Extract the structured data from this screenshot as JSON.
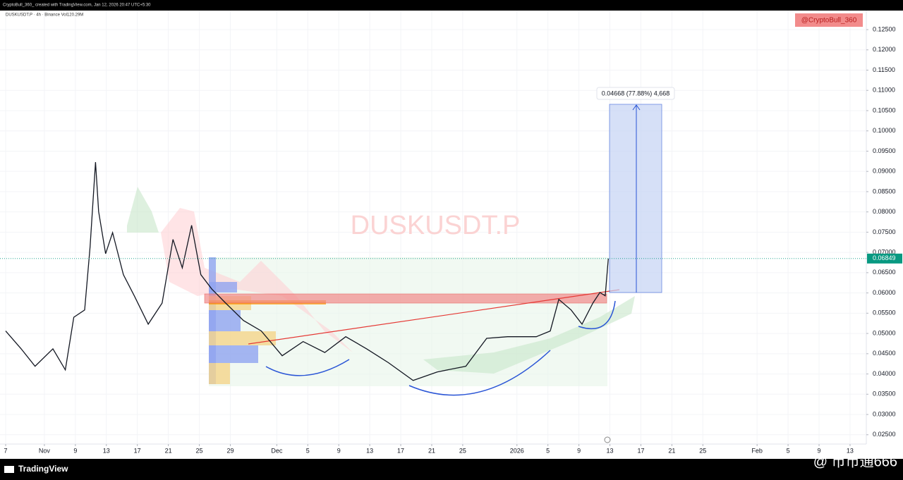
{
  "header": {
    "credit": "CryptoBull_360_ created with TradingView.com, Jan 12, 2026 20:47 UTC+5:30",
    "symbol": "DUSKUSDT.P · 4h · Binance  Vol120.29M"
  },
  "annotations": {
    "watermark": "DUSKUSDT.P",
    "author": "@CryptoBull_360",
    "measure": "0.04668 (77.88%) 4,668"
  },
  "footer": {
    "brand": "TradingView",
    "watermark": "@ 币币通666"
  },
  "chart_data": {
    "type": "line",
    "color": "#131722",
    "grid": true,
    "x": [
      0,
      2,
      3.8,
      6.1,
      7.7,
      8.8,
      10.2,
      10.9,
      11.6,
      12,
      12.9,
      13.8,
      15.2,
      16.6,
      18.4,
      20.2,
      21.6,
      22.8,
      24,
      25.2,
      26.6,
      28.4,
      30.7,
      33,
      35.7,
      38.4,
      41.2,
      43.9,
      46.6,
      49.4,
      52.6,
      55.7,
      59.4,
      62.1,
      64.8,
      68.5,
      70.3,
      71.4,
      73,
      74.4,
      75.8,
      76.7,
      77.4,
      77.8
    ],
    "values": [
      0.0506,
      0.0462,
      0.0419,
      0.0462,
      0.041,
      0.054,
      0.0558,
      0.0714,
      0.0923,
      0.0801,
      0.0697,
      0.0749,
      0.0645,
      0.0593,
      0.0523,
      0.0575,
      0.0732,
      0.0662,
      0.0767,
      0.0645,
      0.061,
      0.0575,
      0.0532,
      0.0506,
      0.0445,
      0.048,
      0.0453,
      0.0492,
      0.0462,
      0.0428,
      0.0384,
      0.0405,
      0.0419,
      0.0488,
      0.0492,
      0.0492,
      0.0506,
      0.0584,
      0.0558,
      0.0523,
      0.0575,
      0.0601,
      0.0593,
      0.06849
    ],
    "last_price": 0.06849,
    "last_price_color": "#089981",
    "xlim": [
      -0.73,
      111.1
    ],
    "ylim": [
      0.0227,
      0.1297
    ],
    "xticks": [
      {
        "value": 0,
        "label": "7"
      },
      {
        "value": 5,
        "label": "Nov"
      },
      9,
      13,
      17,
      21,
      25,
      29,
      {
        "value": 35,
        "label": "Dec"
      },
      {
        "value": 39,
        "label": "5"
      },
      {
        "value": 43,
        "label": "9"
      },
      {
        "value": 47,
        "label": "13"
      },
      {
        "value": 51,
        "label": "17"
      },
      {
        "value": 55,
        "label": "21"
      },
      {
        "value": 59,
        "label": "25"
      },
      {
        "value": 66,
        "label": "2026"
      },
      {
        "value": 70,
        "label": "5"
      },
      {
        "value": 74,
        "label": "9"
      },
      {
        "value": 78,
        "label": "13"
      },
      {
        "value": 82,
        "label": "17"
      },
      {
        "value": 86,
        "label": "21"
      },
      {
        "value": 90,
        "label": "25"
      },
      {
        "value": 97,
        "label": "Feb"
      },
      {
        "value": 101,
        "label": "5"
      },
      {
        "value": 105,
        "label": "9"
      },
      {
        "value": 109,
        "label": "13"
      }
    ],
    "yticks": [
      {
        "value": 0.025,
        "label": "0.02500"
      },
      {
        "value": 0.03,
        "label": "0.03000"
      },
      {
        "value": 0.035,
        "label": "0.03500"
      },
      {
        "value": 0.04,
        "label": "0.04000"
      },
      {
        "value": 0.045,
        "label": "0.04500"
      },
      {
        "value": 0.05,
        "label": "0.05000"
      },
      {
        "value": 0.055,
        "label": "0.05500"
      },
      {
        "value": 0.06,
        "label": "0.06000"
      },
      {
        "value": 0.065,
        "label": "0.06500"
      },
      {
        "value": 0.07,
        "label": "0.07000"
      },
      {
        "value": 0.075,
        "label": "0.07500"
      },
      {
        "value": 0.08,
        "label": "0.08000"
      },
      {
        "value": 0.085,
        "label": "0.08500"
      },
      {
        "value": 0.09,
        "label": "0.09000"
      },
      {
        "value": 0.095,
        "label": "0.09500"
      },
      {
        "value": 0.1,
        "label": "0.10000"
      },
      {
        "value": 0.105,
        "label": "0.10500"
      },
      {
        "value": 0.11,
        "label": "0.11000"
      },
      {
        "value": 0.115,
        "label": "0.11500"
      },
      {
        "value": 0.12,
        "label": "0.12000"
      },
      {
        "value": 0.125,
        "label": "0.12500"
      }
    ]
  }
}
